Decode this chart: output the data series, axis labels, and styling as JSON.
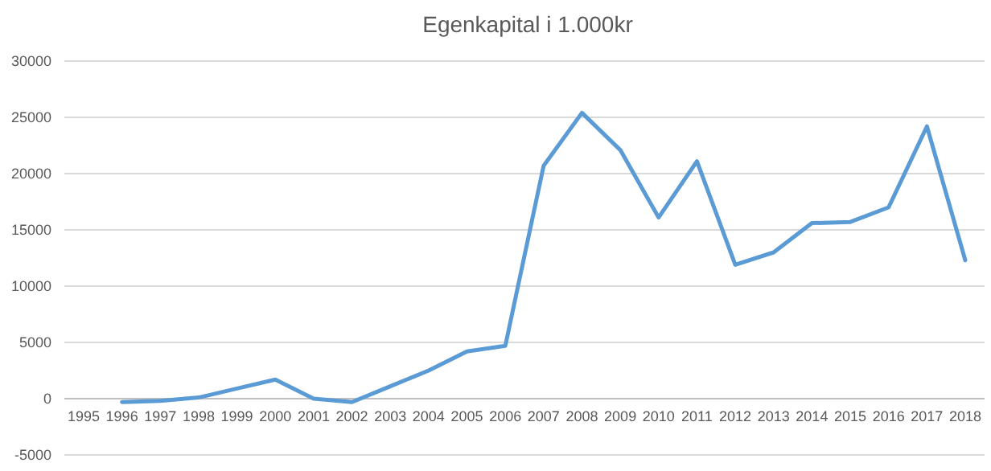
{
  "chart_data": {
    "type": "line",
    "title": "Egenkapital i 1.000kr",
    "categories": [
      "1995",
      "1996",
      "1997",
      "1998",
      "1999",
      "2000",
      "2001",
      "2002",
      "2003",
      "2004",
      "2005",
      "2006",
      "2007",
      "2008",
      "2009",
      "2010",
      "2011",
      "2012",
      "2013",
      "2014",
      "2015",
      "2016",
      "2017",
      "2018"
    ],
    "series": [
      {
        "color": "#5b9bd5",
        "values": [
          null,
          -300,
          -200,
          100,
          900,
          1700,
          0,
          -300,
          1100,
          2500,
          4200,
          4700,
          20700,
          25400,
          22100,
          16100,
          21100,
          11900,
          13000,
          15600,
          15700,
          17000,
          24200,
          12300
        ]
      }
    ],
    "ylim": [
      -5000,
      30000
    ],
    "yticks": [
      -5000,
      0,
      5000,
      10000,
      15000,
      20000,
      25000,
      30000
    ],
    "grid": "y",
    "marker": "none",
    "line_style": "solid"
  }
}
